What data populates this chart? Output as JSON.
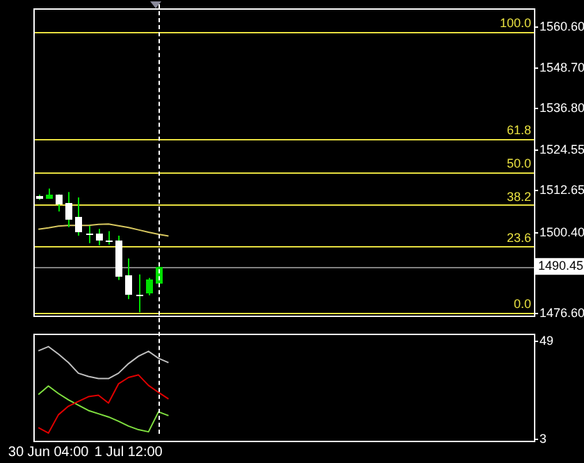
{
  "chart_data": [
    {
      "type": "candlestick",
      "color": "#00e000",
      "colors": [
        "#ffffff",
        "#00e000",
        "#ffffff",
        "#ffffff",
        "#ffffff",
        "#ffffff",
        "#ffffff",
        "#ffffff",
        "#ffffff",
        "#ffffff",
        "#ffffff",
        "#00e000",
        "#00e000",
        null,
        null,
        null,
        null,
        null,
        null,
        null,
        null,
        null,
        null,
        null,
        null,
        null,
        null,
        null,
        null,
        null,
        null,
        null,
        null,
        null,
        null,
        null,
        null,
        null,
        null,
        null,
        null,
        null,
        null,
        null,
        null,
        null,
        null,
        null,
        null,
        null
      ],
      "categories": [
        null,
        null,
        null,
        null,
        null,
        null,
        null,
        null,
        null,
        null,
        null,
        null,
        null,
        null,
        null,
        null,
        null,
        null,
        null,
        null,
        null,
        null,
        null,
        null,
        null,
        null,
        null,
        null,
        null,
        null,
        null,
        null,
        null,
        null,
        null,
        null,
        null,
        null,
        null,
        null,
        null,
        null,
        null,
        null,
        null,
        null,
        null,
        null,
        null,
        null
      ],
      "ohlc": [
        [
          1511.0,
          1511.5,
          1510.0,
          1510.5
        ],
        [
          1510.5,
          1513.3,
          1510.5,
          1511.4
        ],
        [
          1511.4,
          1511.6,
          1506.6,
          1508.5
        ],
        [
          1509.2,
          1512.3,
          1502.0,
          1504.3
        ],
        [
          1505.0,
          1510.7,
          1499.5,
          1500.5
        ],
        [
          1500.3,
          1502.4,
          1497.3,
          1500.1
        ],
        [
          1500.3,
          1501.5,
          1496.7,
          1498.2
        ],
        [
          1498.2,
          1500.8,
          1496.9,
          1498.0
        ],
        [
          1498.0,
          1499.5,
          1486.5,
          1487.5
        ],
        [
          1487.7,
          1492.8,
          1480.9,
          1482.1
        ],
        [
          1482.2,
          1488.1,
          1477.0,
          1482.0
        ],
        [
          1482.5,
          1487.1,
          1482.0,
          1486.5
        ],
        [
          1485.5,
          1491.0,
          1485.0,
          1490.45
        ],
        null,
        null,
        null,
        null,
        null,
        null,
        null,
        null,
        null,
        null,
        null,
        null,
        null,
        null,
        null,
        null,
        null,
        null,
        null,
        null,
        null,
        null,
        null,
        null,
        null,
        null,
        null,
        null,
        null,
        null,
        null,
        null,
        null,
        null,
        null,
        null,
        null
      ],
      "series": [
        {
          "type": "line",
          "color": "#d8c860",
          "values": [
            1501.4,
            1501.8,
            1502.3,
            1502.5,
            1502.5,
            1502.5,
            1502.8,
            1502.9,
            1502.4,
            1501.9,
            1501.2,
            1500.5,
            1499.9,
            1499.4,
            null,
            null,
            null,
            null,
            null,
            null,
            null,
            null,
            null,
            null,
            null,
            null,
            null,
            null,
            null,
            null,
            null,
            null,
            null,
            null,
            null,
            null,
            null,
            null,
            null,
            null,
            null,
            null,
            null,
            null,
            null,
            null,
            null,
            null,
            null,
            null
          ]
        }
      ],
      "ylim": [
        1475.8,
        1566
      ],
      "yticks": [
        {
          "value": 1476.6,
          "label": "1476.60"
        },
        {
          "value": 1500.4,
          "label": "1500.40"
        },
        {
          "value": 1512.65,
          "label": "1512.65"
        },
        {
          "value": 1524.55,
          "label": "1524.55"
        },
        {
          "value": 1536.8,
          "label": "1536.80"
        },
        {
          "value": 1548.7,
          "label": "1548.70"
        },
        {
          "value": 1560.6,
          "label": "1560.60"
        }
      ],
      "tick_labels": "y",
      "grid": false,
      "legend": false,
      "marker": "none",
      "ref_lines": [
        {
          "axis": "y",
          "value": 1477.0,
          "color": "#e8e040"
        },
        {
          "axis": "y",
          "value": 1496.5,
          "color": "#e8e040"
        },
        {
          "axis": "y",
          "value": 1508.5,
          "color": "#e8e040"
        },
        {
          "axis": "y",
          "value": 1518.2,
          "color": "#e8e040"
        },
        {
          "axis": "y",
          "value": 1528.0,
          "color": "#e8e040"
        },
        {
          "axis": "y",
          "value": 1559.4,
          "color": "#e8e040"
        },
        {
          "axis": "y",
          "value": 1490.45,
          "label": "1490.45",
          "color": "#808080"
        }
      ],
      "annotations": [
        {
          "text": "0.0",
          "y": 1477.0
        },
        {
          "text": "23.6",
          "y": 1496.5
        },
        {
          "text": "38.2",
          "y": 1508.5
        },
        {
          "text": "50.0",
          "y": 1518.2
        },
        {
          "text": "61.8",
          "y": 1528.0
        },
        {
          "text": "100.0",
          "y": 1559.4
        }
      ]
    },
    {
      "type": "line",
      "categories": [
        null,
        "30 Jun 04:00",
        null,
        null,
        null,
        null,
        null,
        null,
        null,
        "1 Jul 12:00",
        null,
        null,
        null,
        null,
        null,
        null,
        null,
        null,
        null,
        null,
        null,
        null,
        null,
        null,
        null,
        null,
        null,
        null,
        null,
        null,
        null,
        null,
        null,
        null,
        null,
        null,
        null,
        null,
        null,
        null,
        null,
        null,
        null,
        null,
        null,
        null,
        null,
        null,
        null,
        null
      ],
      "series": [
        {
          "color": "#c0c0c0",
          "values": [
            44.5,
            46.5,
            43,
            39,
            34,
            32.5,
            31.5,
            31.5,
            34,
            38.5,
            42,
            44.3,
            41,
            39,
            null,
            null,
            null,
            null,
            null,
            null,
            null,
            null,
            null,
            null,
            null,
            null,
            null,
            null,
            null,
            null,
            null,
            null,
            null,
            null,
            null,
            null,
            null,
            null,
            null,
            null,
            null,
            null,
            null,
            null,
            null,
            null,
            null,
            null,
            null,
            null
          ]
        },
        {
          "color": "#e00000",
          "values": [
            8.5,
            5.9,
            14.5,
            18.5,
            20.8,
            23,
            23.7,
            20,
            29,
            32,
            33.2,
            28.3,
            25,
            21.9,
            null,
            null,
            null,
            null,
            null,
            null,
            null,
            null,
            null,
            null,
            null,
            null,
            null,
            null,
            null,
            null,
            null,
            null,
            null,
            null,
            null,
            null,
            null,
            null,
            null,
            null,
            null,
            null,
            null,
            null,
            null,
            null,
            null,
            null,
            null,
            null
          ]
        },
        {
          "color": "#80e040",
          "values": [
            24,
            28,
            24.5,
            21.5,
            19,
            16.5,
            15,
            13.5,
            11.5,
            9.2,
            7.5,
            6.5,
            15.9,
            14.1,
            null,
            null,
            null,
            null,
            null,
            null,
            null,
            null,
            null,
            null,
            null,
            null,
            null,
            null,
            null,
            null,
            null,
            null,
            null,
            null,
            null,
            null,
            null,
            null,
            null,
            null,
            null,
            null,
            null,
            null,
            null,
            null,
            null,
            null,
            null,
            null
          ]
        }
      ],
      "ylim": [
        2.3,
        52.3
      ],
      "yticks": [
        3,
        49
      ],
      "grid": false,
      "legend": false,
      "marker": "none"
    }
  ]
}
